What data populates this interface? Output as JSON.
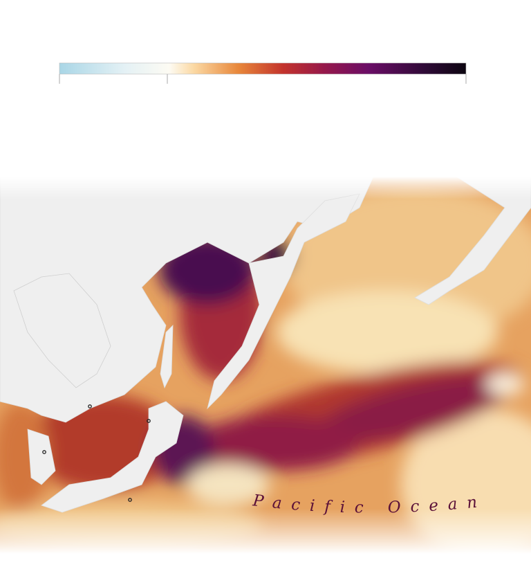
{
  "map": {
    "ocean_label": "Pacific Ocean"
  }
}
